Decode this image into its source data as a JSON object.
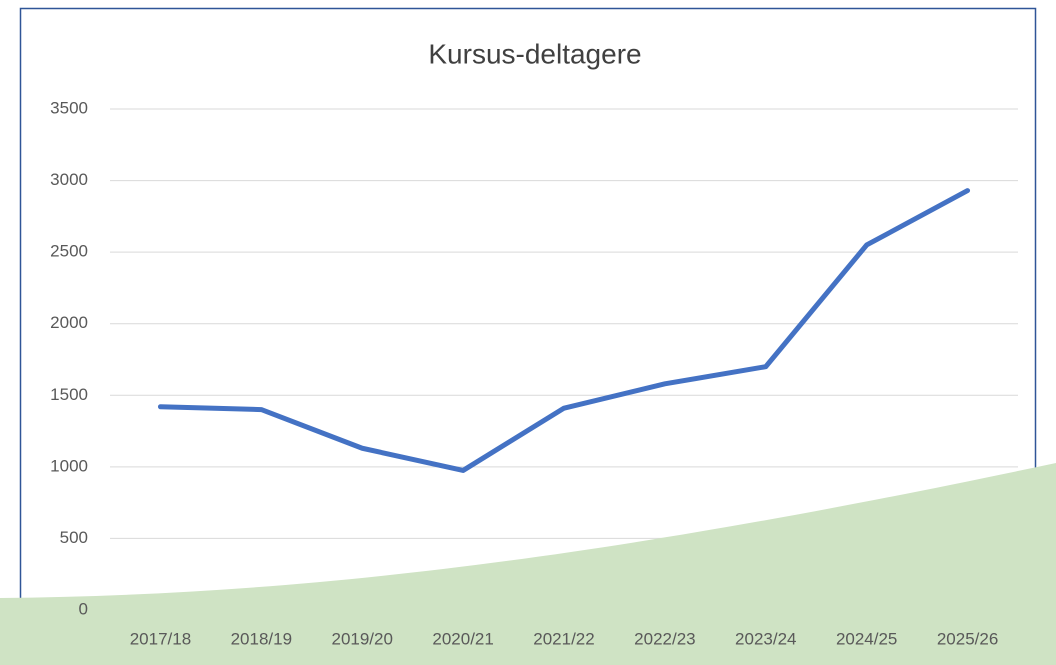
{
  "chart_data": {
    "type": "line",
    "title": "Kursus-deltagere",
    "categories": [
      "2017/18",
      "2018/19",
      "2019/20",
      "2020/21",
      "2021/22",
      "2022/23",
      "2023/24",
      "2024/25",
      "2025/26"
    ],
    "series": [
      {
        "name": "Kursus-deltagere",
        "color": "#4472c4",
        "values": [
          1420,
          1400,
          1130,
          975,
          1410,
          1580,
          1700,
          2550,
          2930
        ]
      }
    ],
    "ylim": [
      0,
      3500
    ],
    "yticks": [
      0,
      500,
      1000,
      1500,
      2000,
      2500,
      3000,
      3500
    ],
    "grid": true
  }
}
